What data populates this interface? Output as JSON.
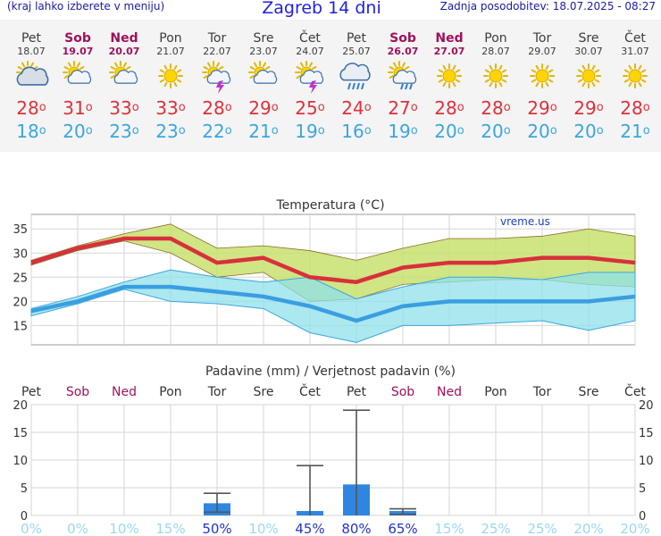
{
  "header": {
    "menu_hint": "(kraj lahko izberete v meniju)",
    "title": "Zagreb 14 dni",
    "updated": "Zadnja posodobitev: 18.07.2025 - 08:27"
  },
  "degree_symbol": "o",
  "colors": {
    "weekend": "#a0115a",
    "tmax": "#e0303a",
    "tmin": "#3aa6e0",
    "max_band": "#c8e06e",
    "min_band": "#8fe0ea",
    "overlap": "#6cc47a",
    "precip_bar": "#2f86e0",
    "prob_low": "#9ad8f0",
    "prob_high": "#2233cc"
  },
  "days": [
    {
      "name": "Pet",
      "date": "18.07",
      "weekend": false,
      "icon": "sun-cloud-heavy-icon",
      "tmax": "28",
      "tmin": "18"
    },
    {
      "name": "Sob",
      "date": "19.07",
      "weekend": true,
      "icon": "sun-cloud-icon",
      "tmax": "31",
      "tmin": "20"
    },
    {
      "name": "Ned",
      "date": "20.07",
      "weekend": true,
      "icon": "sun-cloud-icon",
      "tmax": "33",
      "tmin": "23"
    },
    {
      "name": "Pon",
      "date": "21.07",
      "weekend": false,
      "icon": "sun-icon",
      "tmax": "33",
      "tmin": "23"
    },
    {
      "name": "Tor",
      "date": "22.07",
      "weekend": false,
      "icon": "sun-cloud-thunder-icon",
      "tmax": "28",
      "tmin": "22"
    },
    {
      "name": "Sre",
      "date": "23.07",
      "weekend": false,
      "icon": "sun-cloud-icon",
      "tmax": "29",
      "tmin": "21"
    },
    {
      "name": "Čet",
      "date": "24.07",
      "weekend": false,
      "icon": "sun-cloud-thunder-icon",
      "tmax": "25",
      "tmin": "19"
    },
    {
      "name": "Pet",
      "date": "25.07",
      "weekend": false,
      "icon": "cloud-rain-icon",
      "tmax": "24",
      "tmin": "16"
    },
    {
      "name": "Sob",
      "date": "26.07",
      "weekend": true,
      "icon": "sun-cloud-rain-icon",
      "tmax": "27",
      "tmin": "19"
    },
    {
      "name": "Ned",
      "date": "27.07",
      "weekend": true,
      "icon": "sun-icon",
      "tmax": "28",
      "tmin": "20"
    },
    {
      "name": "Pon",
      "date": "28.07",
      "weekend": false,
      "icon": "sun-icon",
      "tmax": "28",
      "tmin": "20"
    },
    {
      "name": "Tor",
      "date": "29.07",
      "weekend": false,
      "icon": "sun-icon",
      "tmax": "29",
      "tmin": "20"
    },
    {
      "name": "Sre",
      "date": "30.07",
      "weekend": false,
      "icon": "sun-icon",
      "tmax": "29",
      "tmin": "20"
    },
    {
      "name": "Čet",
      "date": "31.07",
      "weekend": false,
      "icon": "sun-icon",
      "tmax": "28",
      "tmin": "21"
    }
  ],
  "chart_data": [
    {
      "type": "line",
      "title": "Temperatura",
      "unit": "°C",
      "watermark": "vreme.us",
      "ylim": [
        11,
        38
      ],
      "yticks": [
        15,
        20,
        25,
        30,
        35
      ],
      "grid": true,
      "series": [
        {
          "values": [
            28,
            31,
            33,
            33,
            28,
            29,
            25,
            24,
            27,
            28,
            28,
            29,
            29,
            28
          ]
        },
        {
          "values": [
            18,
            20,
            23,
            23,
            22,
            21,
            19,
            16,
            19,
            20,
            20,
            20,
            20,
            21
          ]
        }
      ],
      "max_band": {
        "upper": [
          28.5,
          31.5,
          34,
          36,
          31,
          31.5,
          30.5,
          28.5,
          31,
          33,
          33,
          33.5,
          35,
          33.5
        ],
        "lower": [
          27.5,
          30.5,
          32.5,
          30,
          25,
          26,
          20,
          20.5,
          23.5,
          24,
          24.5,
          24.5,
          23.5,
          23
        ]
      },
      "min_band": {
        "upper": [
          18.5,
          21,
          24,
          26.5,
          25,
          24,
          25,
          20.5,
          23,
          25,
          25,
          24.5,
          26,
          26
        ],
        "lower": [
          17,
          19.5,
          22.5,
          20,
          19.5,
          18.5,
          13.5,
          11.5,
          15,
          15,
          15.5,
          16,
          14,
          16
        ]
      }
    },
    {
      "type": "bar",
      "title": "Padavine (mm) / Verjetnost padavin (%)",
      "ylim": [
        0,
        20
      ],
      "yticks": [
        0,
        5,
        10,
        15,
        20
      ],
      "categories": [
        "Pet",
        "Sob",
        "Ned",
        "Pon",
        "Tor",
        "Sre",
        "Čet",
        "Pet",
        "Sob",
        "Ned",
        "Pon",
        "Tor",
        "Sre",
        "Čet"
      ],
      "values": [
        0,
        0,
        0,
        0,
        2.2,
        0,
        0.8,
        5.6,
        0.8,
        0,
        0,
        0,
        0,
        0
      ],
      "range_high": [
        null,
        null,
        null,
        null,
        4,
        null,
        9,
        19,
        1.2,
        null,
        null,
        null,
        null,
        null
      ],
      "range_low": [
        null,
        null,
        null,
        null,
        0.6,
        null,
        0,
        0,
        0.2,
        null,
        null,
        null,
        null,
        null
      ],
      "probability": [
        "0%",
        "0%",
        "10%",
        "15%",
        "50%",
        "10%",
        "45%",
        "80%",
        "65%",
        "15%",
        "25%",
        "25%",
        "20%",
        "20%"
      ]
    }
  ]
}
